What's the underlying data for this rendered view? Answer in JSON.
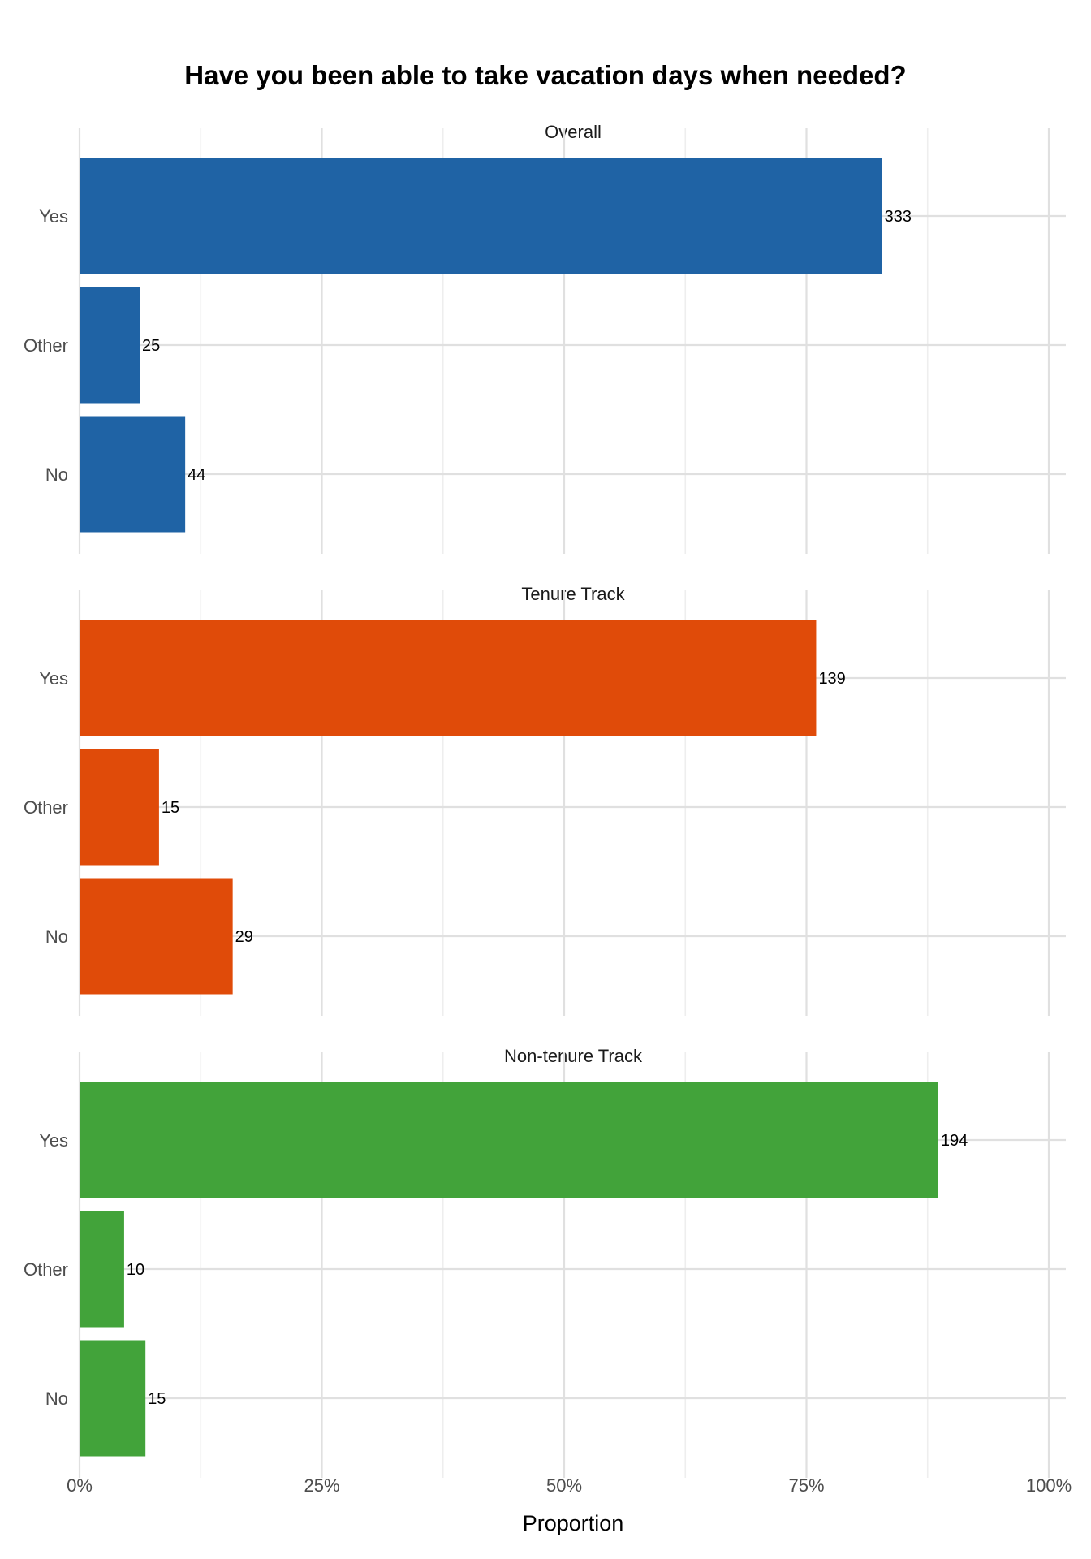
{
  "chart_data": {
    "type": "bar",
    "orientation": "horizontal",
    "title": "Have you been able to take vacation days when needed?",
    "xlabel": "Proportion",
    "ylabel": "",
    "xlim": [
      0,
      1
    ],
    "x_ticks": [
      0,
      0.25,
      0.5,
      0.75,
      1
    ],
    "x_tick_labels": [
      "0%",
      "25%",
      "50%",
      "75%",
      "100%"
    ],
    "grid": true,
    "legend": "none",
    "categories": [
      "Yes",
      "Other",
      "No"
    ],
    "panels": [
      {
        "title": "Overall",
        "color": "#1f63a5",
        "proportions": [
          0.828,
          0.062,
          0.109
        ],
        "counts": [
          "333",
          "25",
          "44"
        ]
      },
      {
        "title": "Tenure Track",
        "color": "#e04b09",
        "proportions": [
          0.76,
          0.082,
          0.158
        ],
        "counts": [
          "139",
          "15",
          "29"
        ]
      },
      {
        "title": "Non-tenure Track",
        "color": "#42a33a",
        "proportions": [
          0.886,
          0.046,
          0.068
        ],
        "counts": [
          "194",
          "10",
          "15"
        ]
      }
    ]
  }
}
